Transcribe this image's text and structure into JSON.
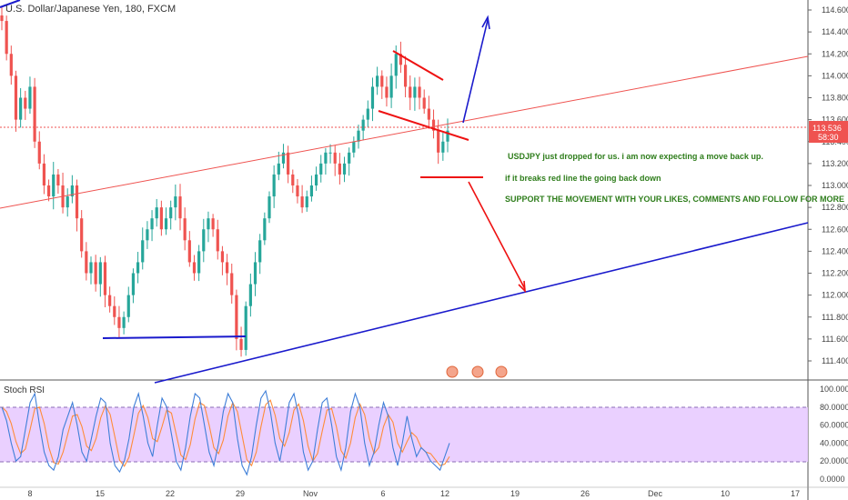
{
  "header": {
    "symbol_title": "U.S. Dollar/Japanese Yen, 180, FXCM"
  },
  "price_axis": {
    "ticks": [
      "114.600",
      "114.400",
      "114.200",
      "114.000",
      "113.800",
      "113.600",
      "113.400",
      "113.200",
      "113.000",
      "112.800",
      "112.600",
      "112.400",
      "112.200",
      "112.000",
      "111.800",
      "111.600",
      "111.400"
    ],
    "last_price": "113.536",
    "countdown": "58:30",
    "last_price_color": "#ef5350"
  },
  "time_axis": {
    "ticks": [
      "8",
      "15",
      "22",
      "29",
      "Nov",
      "6",
      "12",
      "19",
      "26",
      "Dec",
      "10",
      "17"
    ]
  },
  "indicator": {
    "name": "Stoch RSI",
    "ticks": [
      "100.0000",
      "80.0000",
      "60.0000",
      "40.0000",
      "20.0000",
      "0.0000"
    ],
    "band_color": "#e6c8ff"
  },
  "annotations": {
    "note1": "USDJPY just dropped for us. i am now expecting a move back up.",
    "note2": "if it breaks red line the going back down",
    "note3": "SUPPORT THE MOVEMENT WITH YOUR LIKES, COMMENTS AND FOLLOW FOR MORE"
  },
  "colors": {
    "up": "#26a69a",
    "down": "#ef5350",
    "trendline_red": "#ef5350",
    "trendline_blue": "#1a1acc",
    "stoch_k": "#3f7fd8",
    "stoch_d": "#ff8c3a"
  },
  "chart_data": {
    "type": "candlestick",
    "ylim": [
      111.3,
      114.8
    ],
    "close_series": [
      114.5,
      114.2,
      114.0,
      113.6,
      113.8,
      113.7,
      113.9,
      113.4,
      113.2,
      113.0,
      112.9,
      113.1,
      113.0,
      112.8,
      112.9,
      113.0,
      112.7,
      112.4,
      112.2,
      112.3,
      112.1,
      112.3,
      112.0,
      111.9,
      111.8,
      111.7,
      111.8,
      112.0,
      112.2,
      112.3,
      112.5,
      112.6,
      112.7,
      112.8,
      112.6,
      112.7,
      112.8,
      112.9,
      112.7,
      112.5,
      112.3,
      112.2,
      112.4,
      112.6,
      112.7,
      112.6,
      112.4,
      112.3,
      112.2,
      112.0,
      111.6,
      111.5,
      111.9,
      112.1,
      112.3,
      112.5,
      112.7,
      112.9,
      113.1,
      113.2,
      113.3,
      113.1,
      113.0,
      112.9,
      112.8,
      112.9,
      113.0,
      113.1,
      113.2,
      113.3,
      113.3,
      113.2,
      113.1,
      113.2,
      113.3,
      113.4,
      113.5,
      113.6,
      113.7,
      113.9,
      114.0,
      113.9,
      113.8,
      114.0,
      114.2,
      114.1,
      113.9,
      113.8,
      113.9,
      113.8,
      113.7,
      113.6,
      113.5,
      113.3,
      113.4,
      113.5
    ],
    "stoch_k": [
      80,
      65,
      40,
      20,
      25,
      55,
      85,
      95,
      60,
      30,
      15,
      10,
      25,
      55,
      70,
      85,
      60,
      30,
      20,
      45,
      70,
      90,
      85,
      40,
      15,
      8,
      20,
      45,
      80,
      95,
      70,
      40,
      25,
      60,
      90,
      80,
      50,
      20,
      10,
      35,
      70,
      95,
      90,
      60,
      30,
      15,
      40,
      75,
      95,
      85,
      45,
      15,
      5,
      25,
      60,
      90,
      98,
      75,
      40,
      20,
      50,
      85,
      95,
      70,
      30,
      10,
      20,
      55,
      85,
      90,
      60,
      25,
      10,
      35,
      75,
      95,
      80,
      40,
      15,
      30,
      60,
      85,
      70,
      35,
      15,
      40,
      70,
      45,
      25,
      35,
      30,
      20,
      15,
      10,
      25,
      40
    ]
  }
}
